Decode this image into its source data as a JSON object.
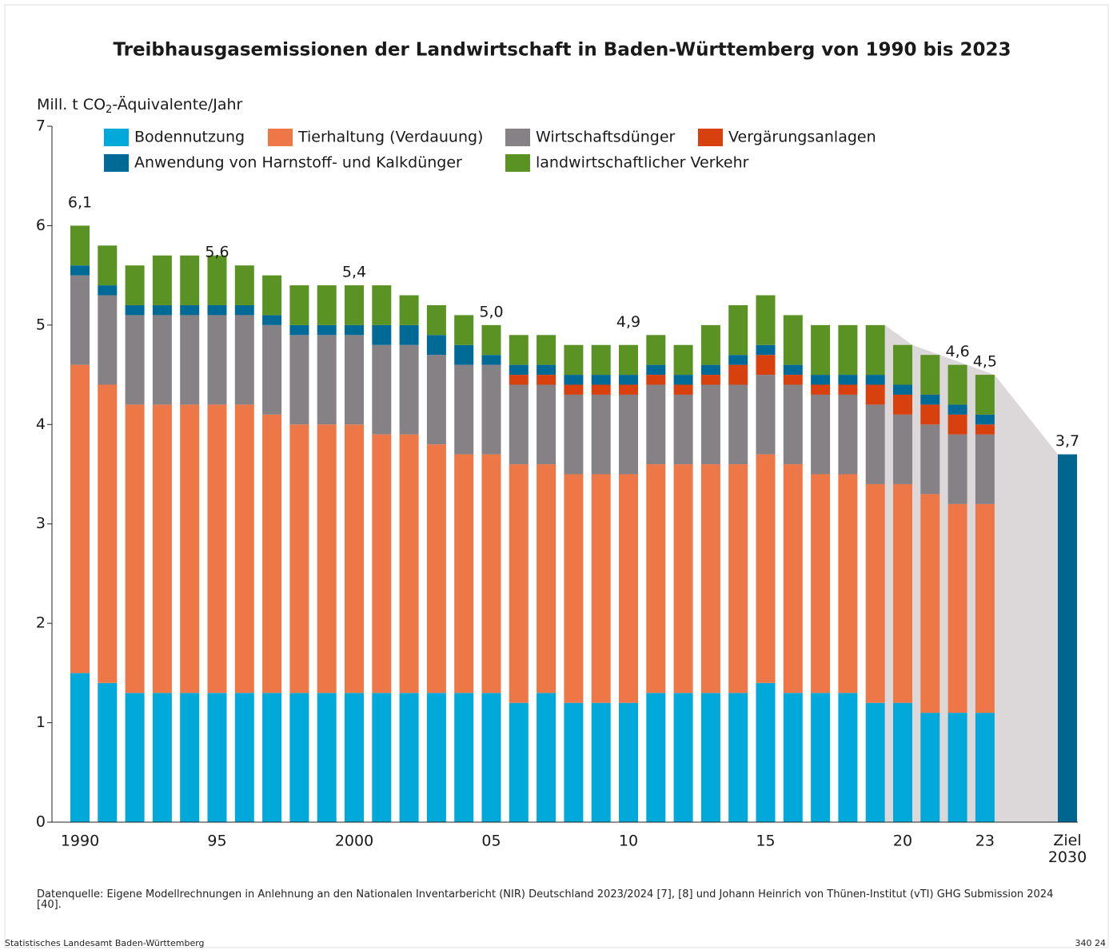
{
  "chart_data": {
    "type": "stacked_bar",
    "title": "Treibhausgasemissionen der Landwirtschaft in Baden-Württemberg von 1990 bis 2023",
    "y_label": [
      "Mill. t CO",
      "2",
      "-Äquivalente/Jahr"
    ],
    "categories": [
      "1990",
      null,
      null,
      null,
      null,
      "95",
      null,
      null,
      null,
      null,
      "2000",
      null,
      null,
      null,
      null,
      "05",
      null,
      null,
      null,
      null,
      "10",
      null,
      null,
      null,
      null,
      "15",
      null,
      null,
      null,
      null,
      "20",
      null,
      null,
      "23",
      "Ziel 2030"
    ],
    "series": [
      {
        "name": "Bodennutzung",
        "color": "#00a9d9",
        "values": [
          1.5,
          1.4,
          1.3,
          1.3,
          1.3,
          1.3,
          1.3,
          1.3,
          1.3,
          1.3,
          1.3,
          1.3,
          1.3,
          1.3,
          1.3,
          1.3,
          1.2,
          1.3,
          1.2,
          1.2,
          1.2,
          1.3,
          1.3,
          1.3,
          1.3,
          1.4,
          1.3,
          1.3,
          1.3,
          1.2,
          1.2,
          1.1,
          1.1,
          1.1,
          null
        ]
      },
      {
        "name": "Tierhaltung (Verdauung)",
        "color": "#ee7748",
        "values": [
          3.1,
          3.0,
          2.9,
          2.9,
          2.9,
          2.9,
          2.9,
          2.8,
          2.7,
          2.7,
          2.7,
          2.6,
          2.6,
          2.5,
          2.4,
          2.4,
          2.4,
          2.3,
          2.3,
          2.3,
          2.3,
          2.3,
          2.3,
          2.3,
          2.3,
          2.3,
          2.3,
          2.2,
          2.2,
          2.2,
          2.2,
          2.2,
          2.1,
          2.1,
          null
        ]
      },
      {
        "name": "Wirtschaftsdünger",
        "color": "#868185",
        "values": [
          0.9,
          0.9,
          0.9,
          0.9,
          0.9,
          0.9,
          0.9,
          0.9,
          0.9,
          0.9,
          0.9,
          0.9,
          0.9,
          0.9,
          0.9,
          0.9,
          0.8,
          0.8,
          0.8,
          0.8,
          0.8,
          0.8,
          0.7,
          0.8,
          0.8,
          0.8,
          0.8,
          0.8,
          0.8,
          0.8,
          0.7,
          0.7,
          0.7,
          0.7,
          null
        ]
      },
      {
        "name": "Vergärungsanlagen",
        "color": "#d8400e",
        "values": [
          0,
          0,
          0,
          0,
          0,
          0,
          0,
          0,
          0,
          0,
          0,
          0,
          0,
          0,
          0,
          0,
          0.1,
          0.1,
          0.1,
          0.1,
          0.1,
          0.1,
          0.1,
          0.1,
          0.2,
          0.2,
          0.1,
          0.1,
          0.1,
          0.2,
          0.2,
          0.2,
          0.2,
          0.1,
          null
        ]
      },
      {
        "name": "Anwendung von Harnstoff- und Kalkdünger",
        "color": "#006a96",
        "values": [
          0.1,
          0.1,
          0.1,
          0.1,
          0.1,
          0.1,
          0.1,
          0.1,
          0.1,
          0.1,
          0.1,
          0.2,
          0.2,
          0.2,
          0.2,
          0.1,
          0.1,
          0.1,
          0.1,
          0.1,
          0.1,
          0.1,
          0.1,
          0.1,
          0.1,
          0.1,
          0.1,
          0.1,
          0.1,
          0.1,
          0.1,
          0.1,
          0.1,
          0.1,
          null
        ]
      },
      {
        "name": "landwirtschaftlicher Verkehr",
        "color": "#5a9223",
        "values": [
          0.4,
          0.4,
          0.4,
          0.5,
          0.5,
          0.5,
          0.4,
          0.4,
          0.4,
          0.4,
          0.4,
          0.4,
          0.3,
          0.3,
          0.3,
          0.3,
          0.3,
          0.3,
          0.3,
          0.3,
          0.3,
          0.3,
          0.3,
          0.4,
          0.5,
          0.5,
          0.5,
          0.5,
          0.5,
          0.5,
          0.4,
          0.4,
          0.4,
          0.4,
          null
        ]
      }
    ],
    "target": {
      "index": 34,
      "value": 3.7,
      "value_label": "3,7",
      "color": "#00668f"
    },
    "totals": [
      {
        "index": 0,
        "value": 6.1,
        "label": "6,1"
      },
      {
        "index": 5,
        "value": 5.6,
        "label": "5,6"
      },
      {
        "index": 10,
        "value": 5.4,
        "label": "5,4"
      },
      {
        "index": 15,
        "value": 5.0,
        "label": "5,0"
      },
      {
        "index": 20,
        "value": 4.9,
        "label": "4,9"
      },
      {
        "index": 32,
        "value": 4.6,
        "label": "4,6"
      },
      {
        "index": 33,
        "value": 4.5,
        "label": "4,5"
      }
    ],
    "ylim": [
      0,
      7
    ],
    "yticks": [
      0,
      1,
      2,
      3,
      4,
      5,
      6,
      7
    ],
    "source": "Datenquelle: Eigene Modellrechnungen in Anlehnung an den Nationalen Inventarbericht (NIR) Deutschland 2023/2024 [7], [8] und Johann Heinrich von Thünen-Institut (vTI) GHG Submission 2024 [40].",
    "publisher": "Statistisches Landesamt Baden-Württemberg",
    "code": "340 24"
  }
}
